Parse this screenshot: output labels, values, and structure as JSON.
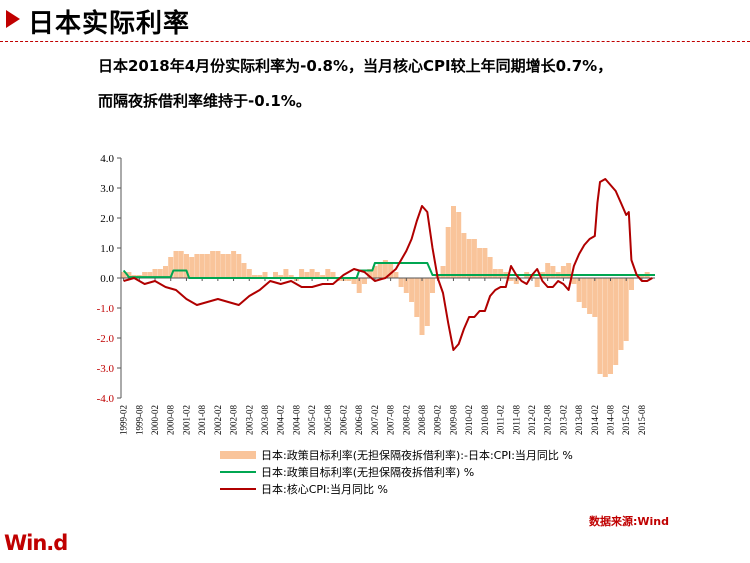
{
  "header": {
    "title": "日本实际利率"
  },
  "description": {
    "line1": "日本2018年4月份实际利率为-0.8%，当月核心CPI较上年同期增长0.7%，",
    "line2": "而隔夜拆借利率维持于-0.1%。"
  },
  "source": "数据来源:Wind",
  "logo": "Win.d",
  "colors": {
    "accent": "#c00000",
    "bar": "#f9c49a",
    "policy_line": "#00a651",
    "cpi_line": "#b00000"
  },
  "chart_data": {
    "type": "bar+line",
    "ylim": [
      -4.0,
      4.0
    ],
    "yticks": [
      "4.0",
      "3.0",
      "2.0",
      "1.0",
      "0.0",
      "-1.0",
      "-2.0",
      "-3.0",
      "-4.0"
    ],
    "xlabel": "",
    "ylabel": "",
    "title": "",
    "grid": false,
    "legend_placement": "bottom",
    "x_tick_labels": [
      "1999-02",
      "1999-08",
      "2000-02",
      "2000-08",
      "2001-02",
      "2001-08",
      "2002-02",
      "2002-08",
      "2003-02",
      "2003-08",
      "2004-02",
      "2004-08",
      "2005-02",
      "2005-08",
      "2006-02",
      "2006-08",
      "2007-02",
      "2007-08",
      "2008-02",
      "2008-08",
      "2009-02",
      "2009-08",
      "2010-02",
      "2010-08",
      "2011-02",
      "2011-08",
      "2012-02",
      "2012-08",
      "2013-02",
      "2013-08",
      "2014-02",
      "2014-08",
      "2015-02",
      "2015-08"
    ],
    "series": [
      {
        "name": "日本:政策目标利率(无担保隔夜拆借利率):-日本:CPI:当月同比 %",
        "type": "bar",
        "points": [
          [
            "1999-02",
            0.2
          ],
          [
            "1999-04",
            0.2
          ],
          [
            "1999-06",
            0.1
          ],
          [
            "1999-08",
            0.1
          ],
          [
            "1999-10",
            0.2
          ],
          [
            "1999-12",
            0.2
          ],
          [
            "2000-02",
            0.3
          ],
          [
            "2000-04",
            0.3
          ],
          [
            "2000-06",
            0.4
          ],
          [
            "2000-08",
            0.7
          ],
          [
            "2000-10",
            0.9
          ],
          [
            "2000-12",
            0.9
          ],
          [
            "2001-02",
            0.8
          ],
          [
            "2001-04",
            0.7
          ],
          [
            "2001-06",
            0.8
          ],
          [
            "2001-08",
            0.8
          ],
          [
            "2001-10",
            0.8
          ],
          [
            "2001-12",
            0.9
          ],
          [
            "2002-02",
            0.9
          ],
          [
            "2002-04",
            0.8
          ],
          [
            "2002-06",
            0.8
          ],
          [
            "2002-08",
            0.9
          ],
          [
            "2002-10",
            0.8
          ],
          [
            "2002-12",
            0.5
          ],
          [
            "2003-02",
            0.3
          ],
          [
            "2003-04",
            0.1
          ],
          [
            "2003-06",
            0.1
          ],
          [
            "2003-08",
            0.2
          ],
          [
            "2003-10",
            0.0
          ],
          [
            "2003-12",
            0.2
          ],
          [
            "2004-02",
            0.1
          ],
          [
            "2004-04",
            0.3
          ],
          [
            "2004-06",
            0.1
          ],
          [
            "2004-08",
            -0.1
          ],
          [
            "2004-10",
            0.3
          ],
          [
            "2004-12",
            0.2
          ],
          [
            "2005-02",
            0.3
          ],
          [
            "2005-04",
            0.2
          ],
          [
            "2005-06",
            0.1
          ],
          [
            "2005-08",
            0.3
          ],
          [
            "2005-10",
            0.2
          ],
          [
            "2005-12",
            -0.1
          ],
          [
            "2006-02",
            -0.1
          ],
          [
            "2006-04",
            -0.1
          ],
          [
            "2006-06",
            -0.2
          ],
          [
            "2006-08",
            -0.5
          ],
          [
            "2006-10",
            -0.2
          ],
          [
            "2006-12",
            0.3
          ],
          [
            "2007-02",
            0.4
          ],
          [
            "2007-04",
            0.5
          ],
          [
            "2007-06",
            0.6
          ],
          [
            "2007-08",
            0.5
          ],
          [
            "2007-10",
            0.2
          ],
          [
            "2007-12",
            -0.3
          ],
          [
            "2008-02",
            -0.5
          ],
          [
            "2008-04",
            -0.8
          ],
          [
            "2008-06",
            -1.3
          ],
          [
            "2008-08",
            -1.9
          ],
          [
            "2008-10",
            -1.6
          ],
          [
            "2008-12",
            -0.5
          ],
          [
            "2009-02",
            0.1
          ],
          [
            "2009-04",
            0.4
          ],
          [
            "2009-06",
            1.7
          ],
          [
            "2009-08",
            2.4
          ],
          [
            "2009-10",
            2.2
          ],
          [
            "2009-12",
            1.5
          ],
          [
            "2010-02",
            1.3
          ],
          [
            "2010-04",
            1.3
          ],
          [
            "2010-06",
            1.0
          ],
          [
            "2010-08",
            1.0
          ],
          [
            "2010-10",
            0.7
          ],
          [
            "2010-12",
            0.3
          ],
          [
            "2011-02",
            0.3
          ],
          [
            "2011-04",
            0.2
          ],
          [
            "2011-06",
            -0.1
          ],
          [
            "2011-08",
            -0.2
          ],
          [
            "2011-10",
            0.0
          ],
          [
            "2011-12",
            0.2
          ],
          [
            "2012-02",
            0.1
          ],
          [
            "2012-04",
            -0.3
          ],
          [
            "2012-06",
            0.2
          ],
          [
            "2012-08",
            0.5
          ],
          [
            "2012-10",
            0.4
          ],
          [
            "2012-12",
            0.2
          ],
          [
            "2013-02",
            0.4
          ],
          [
            "2013-04",
            0.5
          ],
          [
            "2013-06",
            -0.2
          ],
          [
            "2013-08",
            -0.8
          ],
          [
            "2013-10",
            -1.0
          ],
          [
            "2013-12",
            -1.2
          ],
          [
            "2014-02",
            -1.3
          ],
          [
            "2014-04",
            -3.2
          ],
          [
            "2014-06",
            -3.3
          ],
          [
            "2014-08",
            -3.2
          ],
          [
            "2014-10",
            -2.9
          ],
          [
            "2014-12",
            -2.4
          ],
          [
            "2015-02",
            -2.1
          ],
          [
            "2015-04",
            -0.4
          ],
          [
            "2015-06",
            0.0
          ],
          [
            "2015-08",
            0.1
          ],
          [
            "2015-10",
            0.2
          ]
        ]
      },
      {
        "name": "日本:政策目标利率(无担保隔夜拆借利率) %",
        "type": "line",
        "points": [
          [
            "1999-02",
            0.25
          ],
          [
            "1999-03",
            0.15
          ],
          [
            "1999-04",
            0.03
          ],
          [
            "2000-08",
            0.03
          ],
          [
            "2000-09",
            0.25
          ],
          [
            "2001-02",
            0.25
          ],
          [
            "2001-03",
            0.0
          ],
          [
            "2006-07",
            0.0
          ],
          [
            "2006-08",
            0.25
          ],
          [
            "2007-01",
            0.25
          ],
          [
            "2007-02",
            0.5
          ],
          [
            "2008-10",
            0.5
          ],
          [
            "2008-11",
            0.3
          ],
          [
            "2008-12",
            0.1
          ],
          [
            "2010-10",
            0.1
          ],
          [
            "2016-01",
            0.1
          ]
        ]
      },
      {
        "name": "日本:核心CPI:当月同比 %",
        "type": "line",
        "points": [
          [
            "1999-02",
            -0.1
          ],
          [
            "1999-06",
            0.0
          ],
          [
            "1999-10",
            -0.2
          ],
          [
            "2000-02",
            -0.1
          ],
          [
            "2000-06",
            -0.3
          ],
          [
            "2000-10",
            -0.4
          ],
          [
            "2001-02",
            -0.7
          ],
          [
            "2001-06",
            -0.9
          ],
          [
            "2001-10",
            -0.8
          ],
          [
            "2002-02",
            -0.7
          ],
          [
            "2002-06",
            -0.8
          ],
          [
            "2002-10",
            -0.9
          ],
          [
            "2003-02",
            -0.6
          ],
          [
            "2003-06",
            -0.4
          ],
          [
            "2003-10",
            -0.1
          ],
          [
            "2004-02",
            -0.2
          ],
          [
            "2004-06",
            -0.1
          ],
          [
            "2004-10",
            -0.3
          ],
          [
            "2005-02",
            -0.3
          ],
          [
            "2005-06",
            -0.2
          ],
          [
            "2005-10",
            -0.2
          ],
          [
            "2006-02",
            0.1
          ],
          [
            "2006-06",
            0.3
          ],
          [
            "2006-10",
            0.2
          ],
          [
            "2007-02",
            -0.1
          ],
          [
            "2007-06",
            0.0
          ],
          [
            "2007-10",
            0.3
          ],
          [
            "2008-02",
            0.9
          ],
          [
            "2008-04",
            1.3
          ],
          [
            "2008-06",
            1.9
          ],
          [
            "2008-08",
            2.4
          ],
          [
            "2008-10",
            2.2
          ],
          [
            "2008-12",
            1.0
          ],
          [
            "2009-02",
            0.0
          ],
          [
            "2009-04",
            -0.5
          ],
          [
            "2009-06",
            -1.5
          ],
          [
            "2009-08",
            -2.4
          ],
          [
            "2009-10",
            -2.2
          ],
          [
            "2009-12",
            -1.7
          ],
          [
            "2010-02",
            -1.3
          ],
          [
            "2010-04",
            -1.3
          ],
          [
            "2010-06",
            -1.1
          ],
          [
            "2010-08",
            -1.1
          ],
          [
            "2010-10",
            -0.6
          ],
          [
            "2010-12",
            -0.4
          ],
          [
            "2011-02",
            -0.3
          ],
          [
            "2011-04",
            -0.3
          ],
          [
            "2011-06",
            0.4
          ],
          [
            "2011-08",
            0.1
          ],
          [
            "2011-10",
            -0.1
          ],
          [
            "2011-12",
            -0.2
          ],
          [
            "2012-02",
            0.1
          ],
          [
            "2012-04",
            0.3
          ],
          [
            "2012-06",
            -0.1
          ],
          [
            "2012-08",
            -0.3
          ],
          [
            "2012-10",
            -0.3
          ],
          [
            "2012-12",
            -0.1
          ],
          [
            "2013-02",
            -0.2
          ],
          [
            "2013-04",
            -0.4
          ],
          [
            "2013-06",
            0.4
          ],
          [
            "2013-08",
            0.8
          ],
          [
            "2013-10",
            1.1
          ],
          [
            "2013-12",
            1.3
          ],
          [
            "2014-02",
            1.4
          ],
          [
            "2014-03",
            2.5
          ],
          [
            "2014-04",
            3.2
          ],
          [
            "2014-06",
            3.3
          ],
          [
            "2014-08",
            3.1
          ],
          [
            "2014-10",
            2.9
          ],
          [
            "2014-12",
            2.5
          ],
          [
            "2015-02",
            2.1
          ],
          [
            "2015-03",
            2.2
          ],
          [
            "2015-04",
            0.6
          ],
          [
            "2015-06",
            0.1
          ],
          [
            "2015-08",
            -0.1
          ],
          [
            "2015-10",
            -0.1
          ],
          [
            "2015-12",
            0.0
          ]
        ]
      }
    ]
  }
}
